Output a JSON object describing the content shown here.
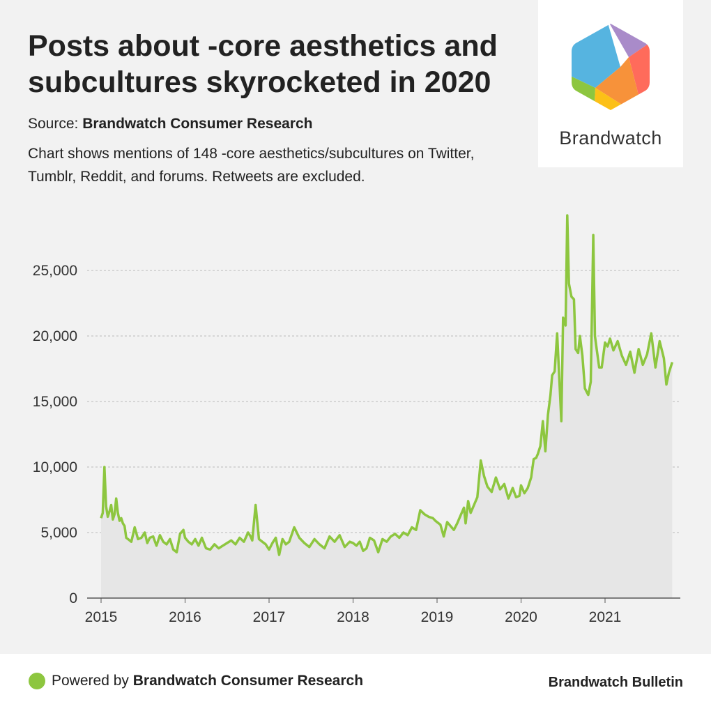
{
  "header": {
    "title": "Posts about -core aesthetics and subcultures skyrocketed in 2020",
    "source_label": "Source:",
    "source_name": "Brandwatch Consumer Research",
    "description": "Chart shows mentions of 148 -core aesthetics/subcultures on Twitter, Tumblr, Reddit, and forums. Retweets are excluded."
  },
  "logo": {
    "wordmark": "Brandwatch",
    "icon": "brandwatch-hexagon-logo",
    "colors": [
      "#56b4e0",
      "#a98bc9",
      "#ff6b5b",
      "#f7923a",
      "#fcc017",
      "#8dc63f"
    ]
  },
  "footer": {
    "powered_label": "Powered by",
    "powered_name": "Brandwatch Consumer Research",
    "brand": "Brandwatch Bulletin"
  },
  "colors": {
    "line": "#8dc63f",
    "area": "#e6e6e6",
    "grid": "#bbbbbb",
    "background": "#f2f2f2"
  },
  "chart_data": {
    "type": "area",
    "title": "Posts about -core aesthetics and subcultures skyrocketed in 2020",
    "xlabel": "",
    "ylabel": "",
    "ylim": [
      0,
      29500
    ],
    "xlim": [
      2015.0,
      2022.0
    ],
    "y_ticks": [
      0,
      5000,
      10000,
      15000,
      20000,
      25000
    ],
    "y_tick_labels": [
      "0",
      "5,000",
      "10,000",
      "15,000",
      "20,000",
      "25,000"
    ],
    "x_ticks": [
      2015,
      2016,
      2017,
      2018,
      2019,
      2020,
      2021
    ],
    "x_tick_labels": [
      "2015",
      "2016",
      "2017",
      "2018",
      "2019",
      "2020",
      "2021"
    ],
    "grid": "horizontal dashed",
    "series": [
      {
        "x": [
          2015.0,
          2015.02,
          2015.04,
          2015.06,
          2015.08,
          2015.1,
          2015.12,
          2015.14,
          2015.16,
          2015.18,
          2015.2,
          2015.22,
          2015.24,
          2015.26,
          2015.28,
          2015.3,
          2015.32,
          2015.34,
          2015.36,
          2015.4,
          2015.44,
          2015.48,
          2015.52,
          2015.55,
          2015.58,
          2015.62,
          2015.66,
          2015.7,
          2015.74,
          2015.78,
          2015.82,
          2015.86,
          2015.9,
          2015.94,
          2015.98,
          2016.0,
          2016.04,
          2016.08,
          2016.12,
          2016.16,
          2016.2,
          2016.25,
          2016.3,
          2016.35,
          2016.4,
          2016.45,
          2016.5,
          2016.55,
          2016.6,
          2016.65,
          2016.7,
          2016.75,
          2016.78,
          2016.8,
          2016.84,
          2016.88,
          2016.92,
          2016.96,
          2017.0,
          2017.04,
          2017.08,
          2017.12,
          2017.16,
          2017.2,
          2017.24,
          2017.3,
          2017.36,
          2017.42,
          2017.48,
          2017.54,
          2017.6,
          2017.66,
          2017.72,
          2017.78,
          2017.84,
          2017.9,
          2017.96,
          2018.0,
          2018.04,
          2018.08,
          2018.12,
          2018.16,
          2018.2,
          2018.25,
          2018.3,
          2018.35,
          2018.4,
          2018.45,
          2018.5,
          2018.55,
          2018.6,
          2018.65,
          2018.7,
          2018.75,
          2018.8,
          2018.85,
          2018.9,
          2018.95,
          2018.98,
          2019.0,
          2019.04,
          2019.08,
          2019.12,
          2019.16,
          2019.2,
          2019.24,
          2019.28,
          2019.32,
          2019.34,
          2019.37,
          2019.4,
          2019.44,
          2019.48,
          2019.52,
          2019.56,
          2019.6,
          2019.65,
          2019.7,
          2019.75,
          2019.8,
          2019.85,
          2019.9,
          2019.94,
          2019.98,
          2020.0,
          2020.04,
          2020.08,
          2020.12,
          2020.15,
          2020.18,
          2020.2,
          2020.23,
          2020.26,
          2020.29,
          2020.32,
          2020.35,
          2020.37,
          2020.4,
          2020.43,
          2020.45,
          2020.48,
          2020.5,
          2020.53,
          2020.55,
          2020.57,
          2020.6,
          2020.63,
          2020.65,
          2020.68,
          2020.7,
          2020.73,
          2020.76,
          2020.8,
          2020.83,
          2020.86,
          2020.88,
          2020.9,
          2020.93,
          2020.96,
          2021.0,
          2021.03,
          2021.06,
          2021.1,
          2021.15,
          2021.2,
          2021.25,
          2021.3,
          2021.35,
          2021.4,
          2021.45,
          2021.5,
          2021.55,
          2021.6,
          2021.65,
          2021.7,
          2021.73,
          2021.76,
          2021.8
        ],
        "values": [
          6100,
          6500,
          10000,
          7000,
          6200,
          6600,
          7100,
          6000,
          6400,
          7600,
          6500,
          5900,
          6100,
          5700,
          5500,
          4600,
          4500,
          4400,
          4300,
          5400,
          4500,
          4600,
          5000,
          4200,
          4600,
          4700,
          4000,
          4800,
          4300,
          4100,
          4500,
          3700,
          3500,
          4900,
          5200,
          4600,
          4300,
          4100,
          4500,
          4000,
          4600,
          3800,
          3700,
          4100,
          3800,
          4000,
          4200,
          4400,
          4100,
          4600,
          4300,
          5000,
          4700,
          4400,
          7100,
          4500,
          4300,
          4100,
          3700,
          4200,
          4600,
          3300,
          4500,
          4100,
          4300,
          5400,
          4600,
          4200,
          3900,
          4500,
          4100,
          3800,
          4700,
          4300,
          4800,
          3900,
          4300,
          4200,
          4000,
          4300,
          3600,
          3800,
          4600,
          4400,
          3500,
          4500,
          4300,
          4700,
          4900,
          4600,
          5000,
          4800,
          5400,
          5200,
          6700,
          6400,
          6200,
          6100,
          5900,
          5800,
          5600,
          4700,
          5800,
          5500,
          5200,
          5700,
          6300,
          6900,
          5700,
          7400,
          6500,
          7100,
          7700,
          10500,
          9300,
          8500,
          8100,
          9200,
          8300,
          8700,
          7600,
          8400,
          7700,
          7800,
          8600,
          8000,
          8400,
          9200,
          10600,
          10700,
          11000,
          11600,
          13500,
          11200,
          14000,
          15500,
          17000,
          17300,
          20200,
          17500,
          13500,
          21400,
          20800,
          29200,
          24000,
          23000,
          22800,
          19000,
          18700,
          20000,
          18500,
          16000,
          15500,
          16500,
          27700,
          20000,
          19000,
          17600,
          17600,
          19500,
          19200,
          19800,
          18900,
          19600,
          18500,
          17800,
          18800,
          17200,
          19000,
          17800,
          18600,
          20200,
          17600,
          19600,
          18300,
          16300,
          17200,
          18000
        ]
      }
    ]
  }
}
